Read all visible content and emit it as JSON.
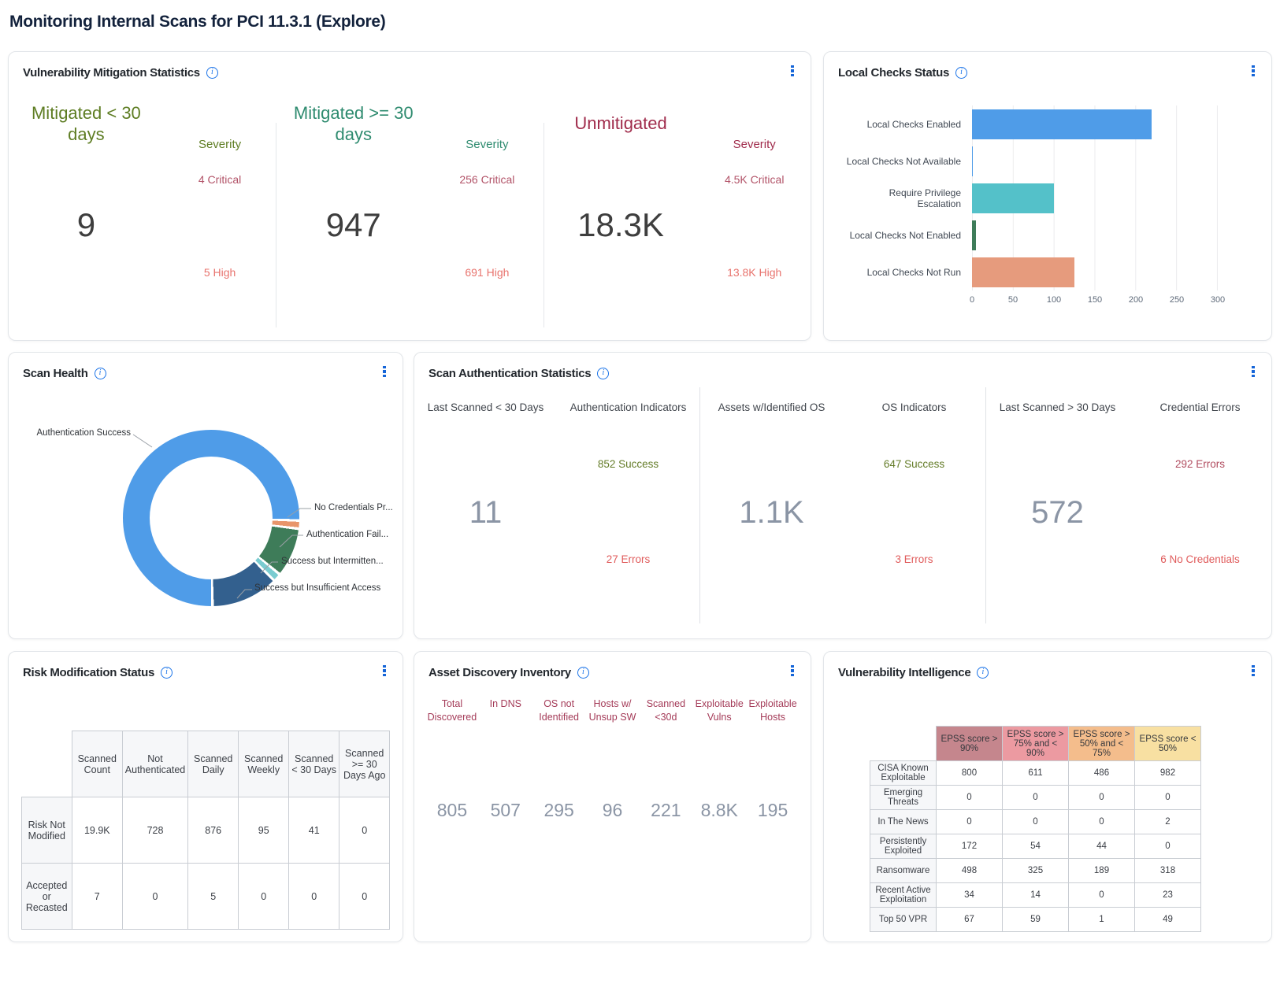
{
  "page": {
    "title": "Monitoring Internal Scans for PCI 11.3.1 (Explore)"
  },
  "panels": {
    "vuln_mitigation": {
      "title": "Vulnerability Mitigation Statistics",
      "critical_color": "#b25368",
      "high_color": "#e8736d",
      "sections": [
        {
          "label": "Mitigated < 30 days",
          "severity_label": "Severity",
          "total": "9",
          "critical": "4 Critical",
          "high": "5 High",
          "label_color": "#5e7d23"
        },
        {
          "label": "Mitigated >= 30 days",
          "severity_label": "Severity",
          "total": "947",
          "critical": "256 Critical",
          "high": "691 High",
          "label_color": "#2e8b6f"
        },
        {
          "label": "Unmitigated",
          "severity_label": "Severity",
          "total": "18.3K",
          "critical": "4.5K Critical",
          "high": "13.8K High",
          "label_color": "#a02c4c"
        }
      ]
    },
    "local_checks": {
      "title": "Local Checks Status",
      "chart_data": {
        "type": "bar",
        "orientation": "horizontal",
        "categories": [
          "Local Checks Enabled",
          "Local Checks Not Available",
          "Require Privilege Escalation",
          "Local Checks Not Enabled",
          "Local Checks Not Run"
        ],
        "values": [
          220,
          1,
          100,
          5,
          125
        ],
        "colors": [
          "#4f9ce8",
          "#4f9ce8",
          "#54c1c9",
          "#3e7c59",
          "#e69b7d"
        ],
        "xlim": [
          0,
          300
        ],
        "xticks": [
          0,
          50,
          100,
          150,
          200,
          250,
          300
        ],
        "grid": true
      }
    },
    "scan_health": {
      "title": "Scan Health",
      "chart_data": {
        "type": "pie",
        "donut": true,
        "start": "bottom-clockwise",
        "segments": [
          {
            "label": "Authentication Success",
            "pct": 75.2,
            "color": "#4f9ce8"
          },
          {
            "label": "No Credentials Pr...",
            "pct": 1.0,
            "color": "#e8956b"
          },
          {
            "label": "Authentication Fail...",
            "pct": 8.5,
            "color": "#3e7c59"
          },
          {
            "label": "Success but Intermitten...",
            "pct": 1.0,
            "color": "#7accd1"
          },
          {
            "label": "Success but Insufficient Access",
            "pct": 11.8,
            "color": "#33608e"
          }
        ]
      }
    },
    "scan_auth": {
      "title": "Scan Authentication Statistics",
      "columns": [
        {
          "header": "Last Scanned < 30 Days",
          "big": "11"
        },
        {
          "header": "Authentication Indicators",
          "top": {
            "text": "852 Success",
            "type": "success"
          },
          "bottom": {
            "text": "27 Errors",
            "type": "error"
          }
        },
        {
          "header": "Assets w/Identified OS",
          "big": "1.1K",
          "divider_before": true
        },
        {
          "header": "OS Indicators",
          "top": {
            "text": "647 Success",
            "type": "success"
          },
          "bottom": {
            "text": "3 Errors",
            "type": "error"
          }
        },
        {
          "header": "Last Scanned > 30 Days",
          "big": "572",
          "divider_before": true
        },
        {
          "header": "Credential Errors",
          "top": {
            "text": "292 Errors",
            "type": "error-dark"
          },
          "bottom": {
            "text": "6 No Credentials",
            "type": "error"
          }
        }
      ]
    },
    "risk_modification": {
      "title": "Risk Modification Status",
      "table": {
        "columns": [
          "Scanned Count",
          "Not Authenticated",
          "Scanned Daily",
          "Scanned Weekly",
          "Scanned < 30 Days",
          "Scanned >= 30 Days Ago"
        ],
        "rows": [
          {
            "label": "Risk Not Modified",
            "values": [
              "19.9K",
              "728",
              "876",
              "95",
              "41",
              "0"
            ]
          },
          {
            "label": "Accepted or Recasted",
            "values": [
              "7",
              "0",
              "5",
              "0",
              "0",
              "0"
            ]
          }
        ]
      }
    },
    "asset_discovery": {
      "title": "Asset Discovery Inventory",
      "header_color": "#a43b58",
      "items": [
        {
          "label": "Total Discovered",
          "value": "805"
        },
        {
          "label": "In DNS",
          "value": "507"
        },
        {
          "label": "OS not Identified",
          "value": "295"
        },
        {
          "label": "Hosts w/ Unsup SW",
          "value": "96"
        },
        {
          "label": "Scanned <30d",
          "value": "221"
        },
        {
          "label": "Exploitable Vulns",
          "value": "8.8K"
        },
        {
          "label": "Exploitable Hosts",
          "value": "195"
        }
      ]
    },
    "vuln_intelligence": {
      "title": "Vulnerability Intelligence",
      "table": {
        "columns": [
          {
            "label": "EPSS score > 90%",
            "bg": "#c5868d"
          },
          {
            "label": "EPSS score > 75% and < 90%",
            "bg": "#ec9aa1"
          },
          {
            "label": "EPSS score > 50% and < 75%",
            "bg": "#f4bd8c"
          },
          {
            "label": "EPSS score < 50%",
            "bg": "#f8e0a2"
          }
        ],
        "rows": [
          {
            "label": "CISA Known Exploitable",
            "values": [
              "800",
              "611",
              "486",
              "982"
            ]
          },
          {
            "label": "Emerging Threats",
            "values": [
              "0",
              "0",
              "0",
              "0"
            ]
          },
          {
            "label": "In The News",
            "values": [
              "0",
              "0",
              "0",
              "2"
            ]
          },
          {
            "label": "Persistently Exploited",
            "values": [
              "172",
              "54",
              "44",
              "0"
            ]
          },
          {
            "label": "Ransomware",
            "values": [
              "498",
              "325",
              "189",
              "318"
            ]
          },
          {
            "label": "Recent Active Exploitation",
            "values": [
              "34",
              "14",
              "0",
              "23"
            ]
          },
          {
            "label": "Top 50 VPR",
            "values": [
              "67",
              "59",
              "1",
              "49"
            ]
          }
        ]
      }
    }
  }
}
